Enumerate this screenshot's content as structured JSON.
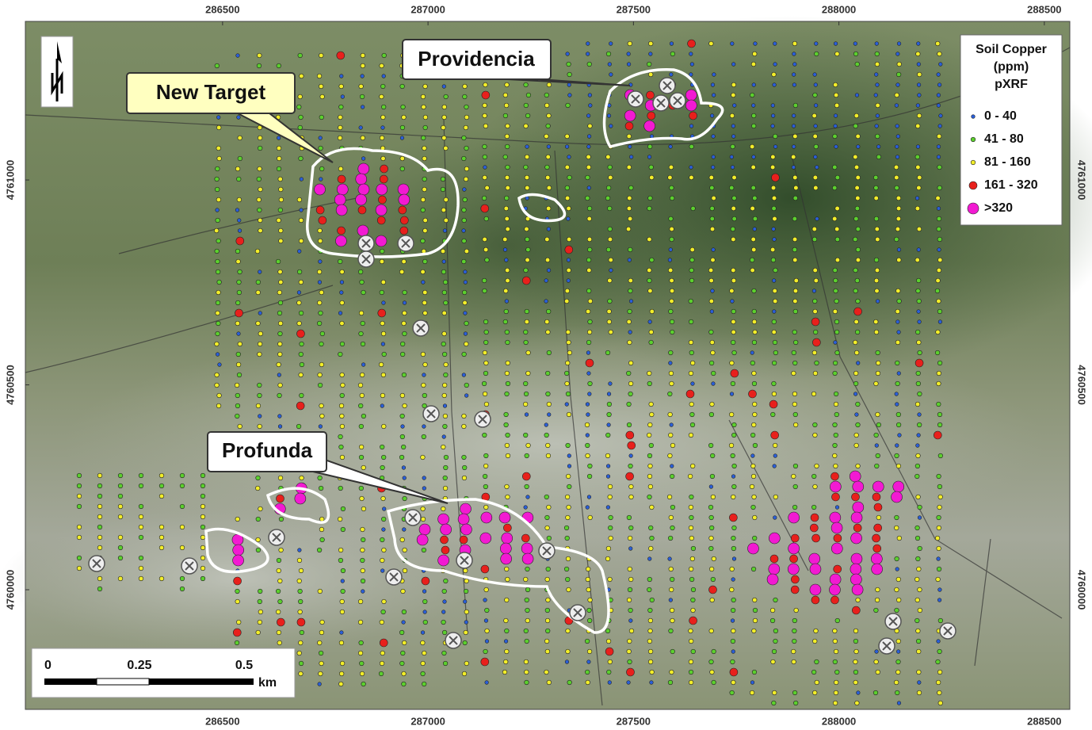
{
  "map": {
    "xlim": [
      286020,
      288562
    ],
    "ylim": [
      4759708,
      4761387
    ],
    "xticks": [
      286500,
      287000,
      287500,
      288000,
      288500
    ],
    "yticks": [
      4760000,
      4760500,
      4761000
    ]
  },
  "targets": [
    "New Target",
    "Providencia",
    "Profunda"
  ],
  "legend": {
    "title_lines": [
      "Soil Copper",
      "(ppm)",
      "pXRF"
    ],
    "classes": [
      {
        "label": "0 - 40",
        "color": "#2a5fd8"
      },
      {
        "label": "41 - 80",
        "color": "#5ccf2e"
      },
      {
        "label": "81 - 160",
        "color": "#f2ee2a"
      },
      {
        "label": "161 - 320",
        "color": "#e8201c"
      },
      {
        "label": ">320",
        "color": "#f21ad2"
      }
    ]
  },
  "scale_bar": {
    "labels": [
      "0",
      "0.25",
      "0.5"
    ],
    "unit": "km"
  }
}
